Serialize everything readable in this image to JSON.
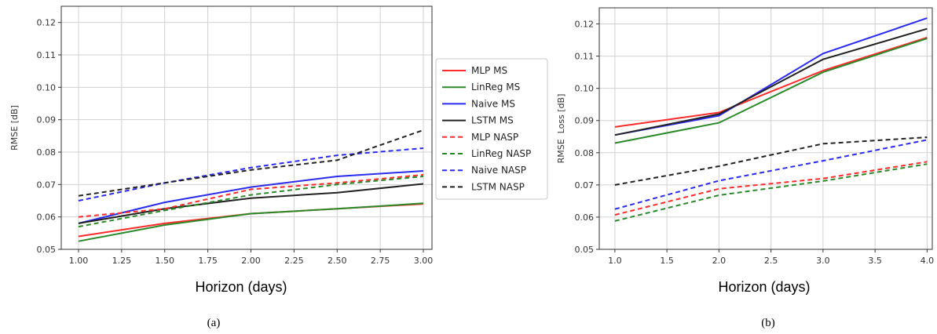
{
  "chart_data": [
    {
      "type": "line",
      "caption": "(a)",
      "xlabel": "Horizon (days)",
      "ylabel": "RMSE [dB]",
      "xlim": [
        0.9,
        3.05
      ],
      "ylim": [
        0.05,
        0.125
      ],
      "xticks": [
        1.0,
        1.25,
        1.5,
        1.75,
        2.0,
        2.25,
        2.5,
        2.75,
        3.0
      ],
      "xtick_labels": [
        "1.00",
        "1.25",
        "1.50",
        "1.75",
        "2.00",
        "2.25",
        "2.50",
        "2.75",
        "3.00"
      ],
      "yticks": [
        0.05,
        0.06,
        0.07,
        0.08,
        0.09,
        0.1,
        0.11,
        0.12
      ],
      "ytick_labels": [
        "0.05",
        "0.06",
        "0.07",
        "0.08",
        "0.09",
        "0.10",
        "0.11",
        "0.12"
      ],
      "grid": true,
      "legend_position": "right, outside",
      "series": [
        {
          "name": "MLP MS",
          "color": "#ff2a2a",
          "dash": false,
          "x": [
            1.0,
            1.5,
            2.0,
            2.5,
            3.0
          ],
          "y": [
            0.054,
            0.058,
            0.061,
            0.0625,
            0.064
          ]
        },
        {
          "name": "LinReg MS",
          "color": "#2a8a2a",
          "dash": false,
          "x": [
            1.0,
            1.5,
            2.0,
            2.5,
            3.0
          ],
          "y": [
            0.0525,
            0.0575,
            0.061,
            0.0625,
            0.0642
          ]
        },
        {
          "name": "Naive MS",
          "color": "#2a2af0",
          "dash": false,
          "x": [
            1.0,
            1.5,
            2.0,
            2.5,
            3.0
          ],
          "y": [
            0.058,
            0.0645,
            0.0692,
            0.0725,
            0.0742
          ]
        },
        {
          "name": "LSTM MS",
          "color": "#222222",
          "dash": false,
          "x": [
            1.0,
            1.5,
            2.0,
            2.5,
            3.0
          ],
          "y": [
            0.058,
            0.0625,
            0.0658,
            0.0675,
            0.0702
          ]
        },
        {
          "name": "MLP NASP",
          "color": "#ff2a2a",
          "dash": true,
          "x": [
            1.0,
            1.5,
            2.0,
            2.5,
            3.0
          ],
          "y": [
            0.06,
            0.0625,
            0.0685,
            0.0705,
            0.073
          ]
        },
        {
          "name": "LinReg NASP",
          "color": "#2a8a2a",
          "dash": true,
          "x": [
            1.0,
            1.5,
            2.0,
            2.5,
            3.0
          ],
          "y": [
            0.057,
            0.062,
            0.0668,
            0.07,
            0.0725
          ]
        },
        {
          "name": "Naive NASP",
          "color": "#2a2af0",
          "dash": true,
          "x": [
            1.0,
            1.5,
            2.0,
            2.5,
            3.0
          ],
          "y": [
            0.065,
            0.0705,
            0.0752,
            0.079,
            0.0812
          ]
        },
        {
          "name": "LSTM NASP",
          "color": "#222222",
          "dash": true,
          "x": [
            1.0,
            1.5,
            2.0,
            2.5,
            3.0
          ],
          "y": [
            0.0665,
            0.0705,
            0.0745,
            0.0775,
            0.0868
          ]
        }
      ]
    },
    {
      "type": "line",
      "caption": "(b)",
      "xlabel": "Horizon (days)",
      "ylabel": "RMSE  Loss [dB]",
      "xlim": [
        0.85,
        4.05
      ],
      "ylim": [
        0.05,
        0.125
      ],
      "xticks": [
        1.0,
        1.5,
        2.0,
        2.5,
        3.0,
        3.5,
        4.0
      ],
      "xtick_labels": [
        "1.0",
        "1.5",
        "2.0",
        "2.5",
        "3.0",
        "3.5",
        "4.0"
      ],
      "yticks": [
        0.05,
        0.06,
        0.07,
        0.08,
        0.09,
        0.1,
        0.11,
        0.12
      ],
      "ytick_labels": [
        "0.05",
        "0.06",
        "0.07",
        "0.08",
        "0.09",
        "0.10",
        "0.11",
        "0.12"
      ],
      "grid": true,
      "series": [
        {
          "name": "MLP MS",
          "color": "#ff2a2a",
          "dash": false,
          "x": [
            1,
            2,
            3,
            4
          ],
          "y": [
            0.088,
            0.0925,
            0.1055,
            0.1158
          ]
        },
        {
          "name": "LinReg MS",
          "color": "#2a8a2a",
          "dash": false,
          "x": [
            1,
            2,
            3,
            4
          ],
          "y": [
            0.083,
            0.0893,
            0.105,
            0.1155
          ]
        },
        {
          "name": "Naive MS",
          "color": "#2a2af0",
          "dash": false,
          "x": [
            1,
            2,
            3,
            4
          ],
          "y": [
            0.0855,
            0.0915,
            0.1108,
            0.1218
          ]
        },
        {
          "name": "LSTM MS",
          "color": "#222222",
          "dash": false,
          "x": [
            1,
            2,
            3,
            4
          ],
          "y": [
            0.0855,
            0.092,
            0.109,
            0.1185
          ]
        },
        {
          "name": "MLP NASP",
          "color": "#ff2a2a",
          "dash": true,
          "x": [
            1,
            2,
            3,
            4
          ],
          "y": [
            0.0607,
            0.0688,
            0.072,
            0.0772
          ]
        },
        {
          "name": "LinReg NASP",
          "color": "#2a8a2a",
          "dash": true,
          "x": [
            1,
            2,
            3,
            4
          ],
          "y": [
            0.0588,
            0.0668,
            0.0712,
            0.0765
          ]
        },
        {
          "name": "Naive NASP",
          "color": "#2a2af0",
          "dash": true,
          "x": [
            1,
            2,
            3,
            4
          ],
          "y": [
            0.0625,
            0.0713,
            0.0775,
            0.084
          ]
        },
        {
          "name": "LSTM NASP",
          "color": "#222222",
          "dash": true,
          "x": [
            1,
            2,
            3,
            4
          ],
          "y": [
            0.07,
            0.0758,
            0.0828,
            0.0848
          ]
        }
      ]
    }
  ]
}
